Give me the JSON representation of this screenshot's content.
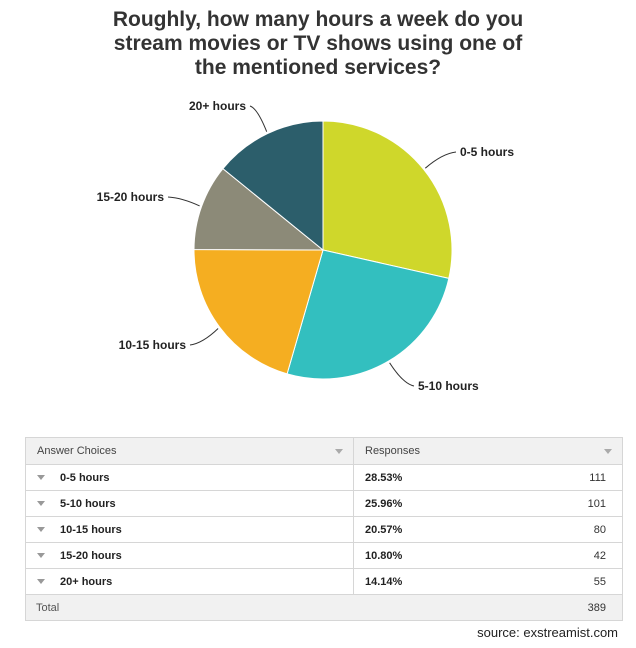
{
  "title_lines": [
    "Roughly, how many hours a week do you",
    "stream movies or TV shows using one of",
    "the mentioned services?"
  ],
  "chart_data": {
    "type": "pie",
    "title": "Roughly, how many hours a week do you stream movies or TV shows using one of the mentioned services?",
    "categories": [
      "0-5 hours",
      "5-10 hours",
      "10-15 hours",
      "15-20 hours",
      "20+ hours"
    ],
    "values": [
      28.53,
      25.96,
      20.57,
      10.8,
      14.14
    ],
    "counts": [
      111,
      101,
      80,
      42,
      55
    ],
    "colors": [
      "#cfd72b",
      "#33bfbf",
      "#f5ae21",
      "#8c8a78",
      "#2c5e6b"
    ]
  },
  "table": {
    "header": {
      "choices": "Answer Choices",
      "responses": "Responses"
    },
    "rows": [
      {
        "choice": "0-5 hours",
        "percent": "28.53%",
        "count": "111"
      },
      {
        "choice": "5-10 hours",
        "percent": "25.96%",
        "count": "101"
      },
      {
        "choice": "10-15 hours",
        "percent": "20.57%",
        "count": "80"
      },
      {
        "choice": "15-20 hours",
        "percent": "10.80%",
        "count": "42"
      },
      {
        "choice": "20+ hours",
        "percent": "14.14%",
        "count": "55"
      }
    ],
    "total_label": "Total",
    "total_count": "389"
  },
  "source": "source: exstreamist.com"
}
